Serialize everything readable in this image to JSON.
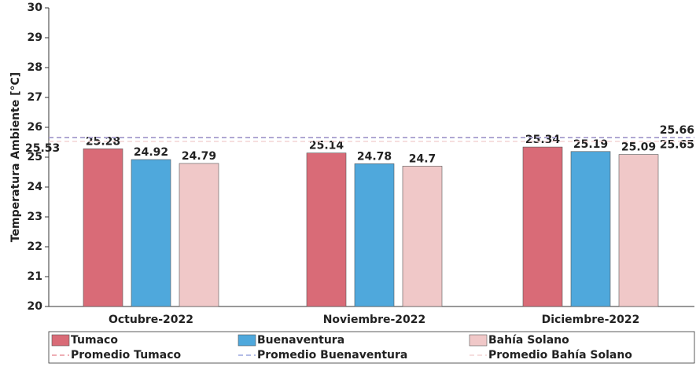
{
  "chart_data": {
    "type": "bar",
    "y_label": "Temperatura Ambiente [°C]",
    "categories": [
      "Octubre-2022",
      "Noviembre-2022",
      "Diciembre-2022"
    ],
    "series": [
      {
        "name": "Tumaco",
        "color": "#d96b77",
        "values": [
          25.28,
          25.14,
          25.34
        ]
      },
      {
        "name": "Buenaventura",
        "color": "#4fa8dc",
        "values": [
          24.92,
          24.78,
          25.19
        ]
      },
      {
        "name": "Bahía Solano",
        "color": "#f0c8c8",
        "values": [
          24.79,
          24.7,
          25.09
        ]
      }
    ],
    "reference_lines": [
      {
        "name": "Promedio Tumaco",
        "value": 25.66,
        "color": "#e8949c",
        "label_color": "#d96b77"
      },
      {
        "name": "Promedio Buenaventura",
        "value": 25.65,
        "color": "#9aa6de",
        "label_color": "#4fa8dc"
      },
      {
        "name": "Promedio Bahía Solano",
        "value": 25.53,
        "color": "#f3d4d4",
        "label_color": "#f0c8c8"
      }
    ],
    "ylim": [
      20,
      30
    ],
    "yticks": [
      20,
      21,
      22,
      23,
      24,
      25,
      26,
      27,
      28,
      29,
      30
    ],
    "grid": false
  }
}
